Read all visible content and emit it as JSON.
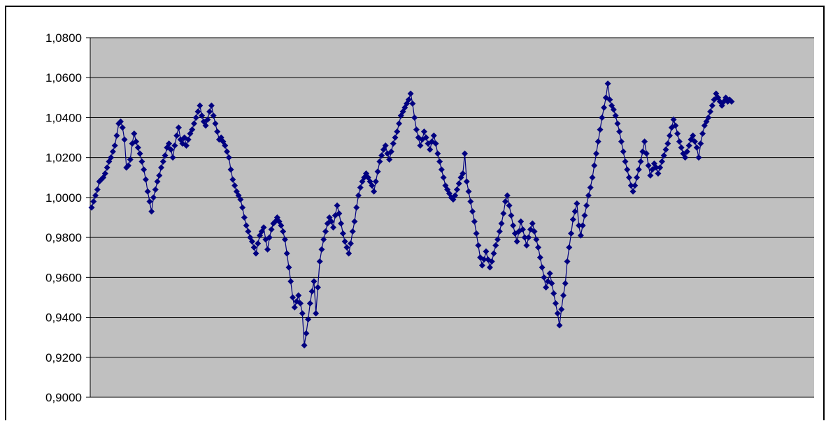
{
  "chart_data": {
    "type": "line",
    "title": "",
    "xlabel": "",
    "ylabel": "",
    "ylim": [
      0.9,
      1.08
    ],
    "ytick_step": 0.02,
    "ytick_labels": [
      "0,9000",
      "0,9200",
      "0,9400",
      "0,9600",
      "0,9800",
      "1,0000",
      "1,0200",
      "1,0400",
      "1,0600",
      "1,0800"
    ],
    "grid": true,
    "legend": "none",
    "colors": {
      "plot_bg": "#c0c0c0",
      "series": "#000080",
      "grid": "#000000"
    },
    "series": [
      {
        "marker": "diamond",
        "values": [
          0.995,
          0.998,
          1.001,
          1.004,
          1.008,
          1.009,
          1.01,
          1.012,
          1.015,
          1.018,
          1.02,
          1.023,
          1.026,
          1.031,
          1.037,
          1.038,
          1.035,
          1.029,
          1.015,
          1.016,
          1.019,
          1.027,
          1.032,
          1.028,
          1.025,
          1.022,
          1.018,
          1.014,
          1.009,
          1.003,
          0.998,
          0.993,
          1.0,
          1.004,
          1.008,
          1.011,
          1.015,
          1.018,
          1.021,
          1.025,
          1.027,
          1.024,
          1.02,
          1.026,
          1.031,
          1.035,
          1.029,
          1.027,
          1.03,
          1.026,
          1.029,
          1.032,
          1.034,
          1.037,
          1.04,
          1.043,
          1.046,
          1.041,
          1.038,
          1.036,
          1.039,
          1.043,
          1.046,
          1.041,
          1.037,
          1.033,
          1.029,
          1.03,
          1.028,
          1.026,
          1.023,
          1.02,
          1.014,
          1.009,
          1.006,
          1.003,
          1.001,
          0.999,
          0.995,
          0.99,
          0.986,
          0.983,
          0.98,
          0.978,
          0.975,
          0.972,
          0.977,
          0.981,
          0.983,
          0.985,
          0.979,
          0.974,
          0.98,
          0.984,
          0.987,
          0.988,
          0.99,
          0.988,
          0.986,
          0.983,
          0.979,
          0.972,
          0.965,
          0.958,
          0.95,
          0.945,
          0.948,
          0.951,
          0.947,
          0.942,
          0.926,
          0.932,
          0.939,
          0.947,
          0.953,
          0.958,
          0.942,
          0.955,
          0.968,
          0.974,
          0.979,
          0.983,
          0.987,
          0.99,
          0.988,
          0.985,
          0.991,
          0.996,
          0.992,
          0.987,
          0.982,
          0.978,
          0.975,
          0.972,
          0.977,
          0.983,
          0.988,
          0.995,
          1.001,
          1.005,
          1.008,
          1.01,
          1.012,
          1.01,
          1.008,
          1.006,
          1.003,
          1.008,
          1.013,
          1.018,
          1.021,
          1.024,
          1.026,
          1.022,
          1.019,
          1.023,
          1.027,
          1.03,
          1.033,
          1.037,
          1.041,
          1.043,
          1.045,
          1.047,
          1.049,
          1.052,
          1.047,
          1.04,
          1.034,
          1.03,
          1.026,
          1.029,
          1.033,
          1.03,
          1.027,
          1.024,
          1.028,
          1.031,
          1.027,
          1.022,
          1.018,
          1.014,
          1.01,
          1.006,
          1.004,
          1.002,
          1.0,
          0.999,
          1.001,
          1.004,
          1.007,
          1.01,
          1.012,
          1.022,
          1.008,
          1.003,
          0.998,
          0.993,
          0.988,
          0.982,
          0.976,
          0.97,
          0.966,
          0.969,
          0.973,
          0.969,
          0.965,
          0.968,
          0.972,
          0.976,
          0.979,
          0.983,
          0.987,
          0.992,
          0.998,
          1.001,
          0.996,
          0.991,
          0.986,
          0.982,
          0.978,
          0.983,
          0.988,
          0.984,
          0.98,
          0.976,
          0.98,
          0.984,
          0.987,
          0.983,
          0.979,
          0.975,
          0.97,
          0.965,
          0.96,
          0.955,
          0.958,
          0.962,
          0.957,
          0.952,
          0.947,
          0.942,
          0.936,
          0.944,
          0.951,
          0.957,
          0.968,
          0.975,
          0.982,
          0.989,
          0.993,
          0.997,
          0.986,
          0.981,
          0.986,
          0.991,
          0.996,
          1.001,
          1.005,
          1.01,
          1.016,
          1.022,
          1.028,
          1.034,
          1.04,
          1.045,
          1.05,
          1.057,
          1.049,
          1.046,
          1.044,
          1.041,
          1.037,
          1.033,
          1.028,
          1.023,
          1.018,
          1.014,
          1.01,
          1.006,
          1.003,
          1.006,
          1.01,
          1.014,
          1.018,
          1.023,
          1.028,
          1.022,
          1.016,
          1.011,
          1.014,
          1.017,
          1.015,
          1.012,
          1.015,
          1.018,
          1.021,
          1.024,
          1.027,
          1.031,
          1.035,
          1.039,
          1.036,
          1.032,
          1.028,
          1.025,
          1.022,
          1.02,
          1.023,
          1.026,
          1.029,
          1.031,
          1.028,
          1.025,
          1.02,
          1.027,
          1.032,
          1.036,
          1.038,
          1.04,
          1.043,
          1.046,
          1.049,
          1.052,
          1.05,
          1.048,
          1.046,
          1.048,
          1.05,
          1.048,
          1.049,
          1.048
        ]
      }
    ]
  }
}
